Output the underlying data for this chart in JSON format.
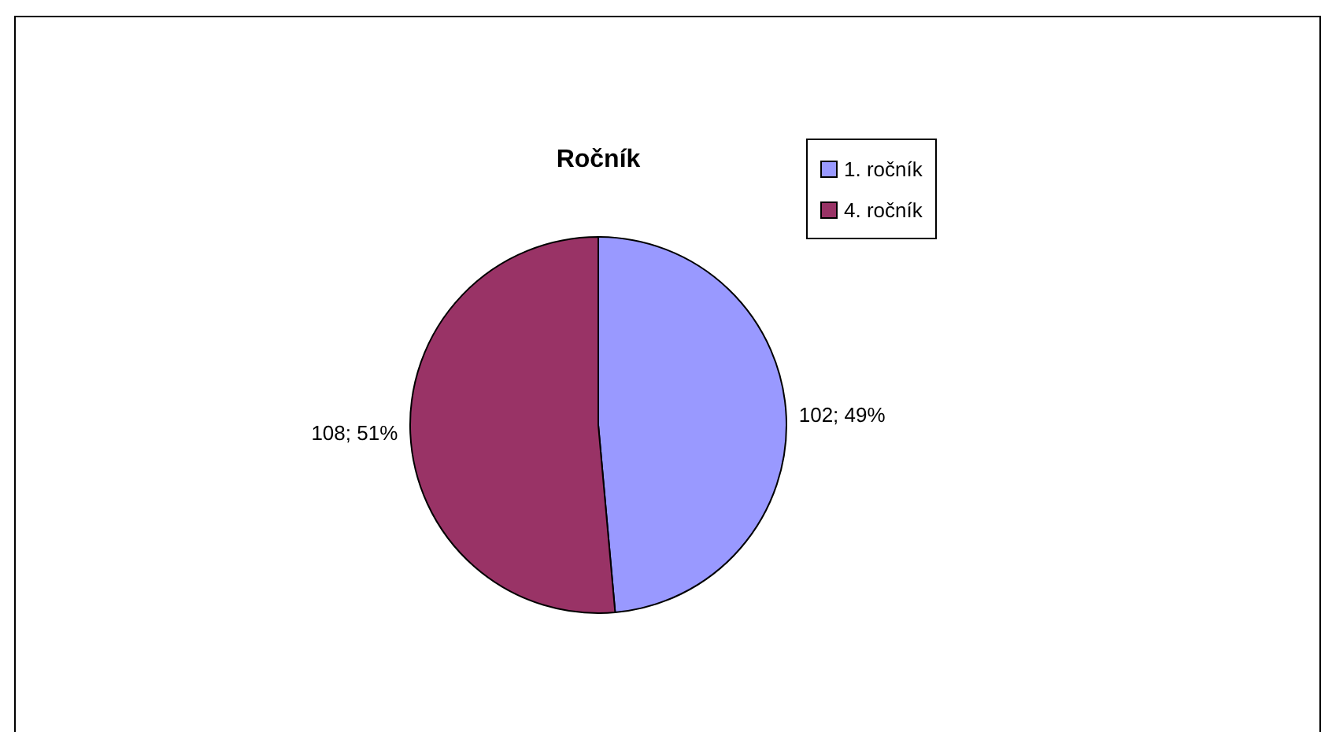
{
  "chart_data": {
    "type": "pie",
    "title": "Ročník",
    "categories": [
      "1. ročník",
      "4. ročník"
    ],
    "values": [
      102,
      108
    ],
    "colors": [
      "#9999ff",
      "#993366"
    ],
    "value_labels": [
      "102; 49%",
      "108; 51%"
    ],
    "legend": "top right"
  }
}
